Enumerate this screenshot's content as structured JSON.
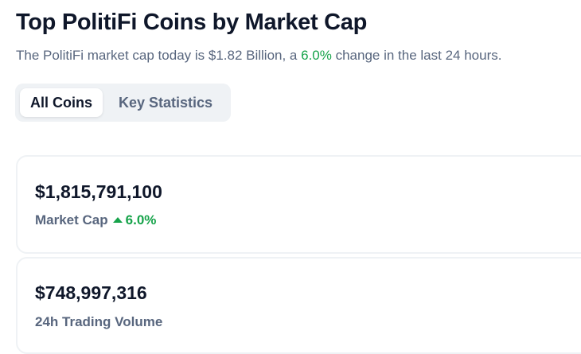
{
  "header": {
    "title": "Top PolitiFi Coins by Market Cap",
    "subtitle_pre": "The PolitiFi market cap today is $1.82 Billion, a ",
    "subtitle_change": "6.0%",
    "subtitle_post": " change in the last 24 hours."
  },
  "tabs": [
    {
      "label": "All Coins",
      "active": true
    },
    {
      "label": "Key Statistics",
      "active": false
    }
  ],
  "stats": [
    {
      "value": "$1,815,791,100",
      "label": "Market Cap",
      "change": "6.0%",
      "direction": "up",
      "change_color": "#16a34a"
    },
    {
      "value": "$748,997,316",
      "label": "24h Trading Volume"
    }
  ]
}
